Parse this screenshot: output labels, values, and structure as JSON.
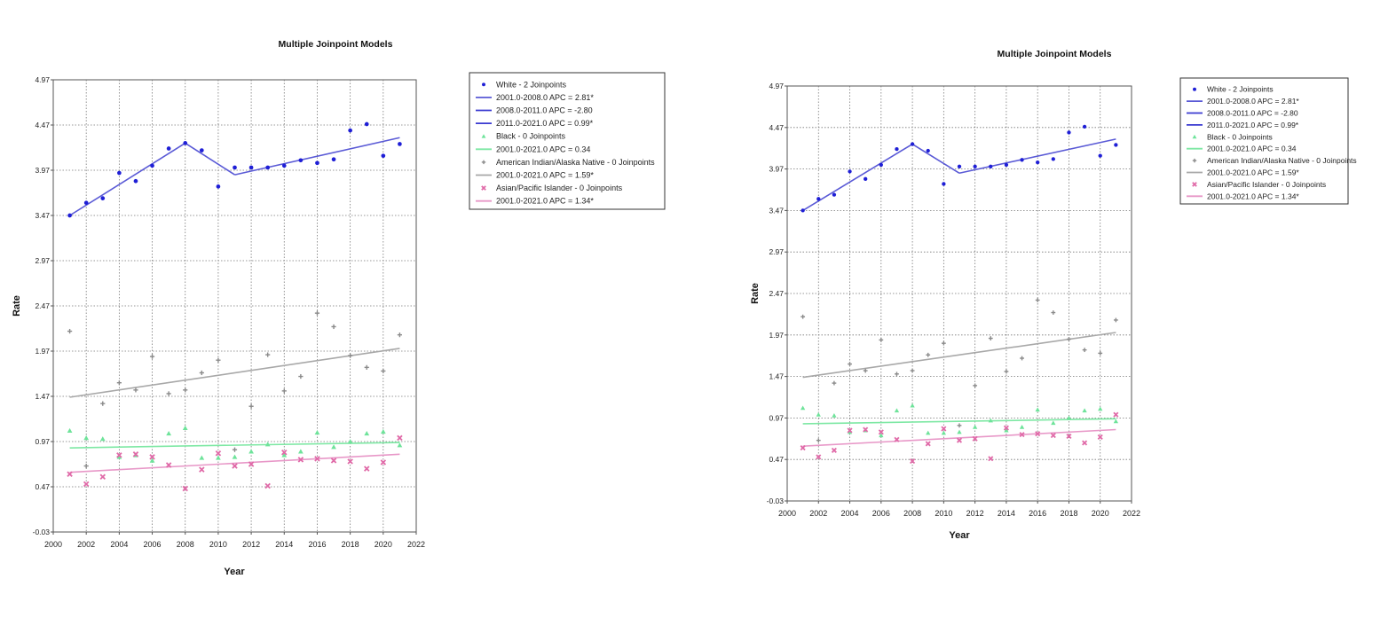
{
  "chart_data": [
    {
      "type": "scatter",
      "title": "Multiple Joinpoint Models",
      "xlabel": "Year",
      "ylabel": "Rate",
      "xlim": [
        2000,
        2022
      ],
      "ylim": [
        -0.03,
        4.97
      ],
      "x_ticks": [
        "2000",
        "2002",
        "2004",
        "2006",
        "2008",
        "2010",
        "2012",
        "2014",
        "2016",
        "2018",
        "2020",
        "2022"
      ],
      "y_ticks": [
        "-0.03",
        "0.47",
        "0.97",
        "1.47",
        "1.97",
        "2.47",
        "2.97",
        "3.47",
        "3.97",
        "4.47",
        "4.97"
      ],
      "grid": true,
      "legend_position": "right",
      "legend": [
        {
          "label": "White - 2 Joinpoints",
          "kind": "marker",
          "marker": "dot",
          "color": "#1f1fd6"
        },
        {
          "label": "2001.0-2008.0 APC  =  2.81*",
          "kind": "line",
          "color": "#5a5ad6"
        },
        {
          "label": "2008.0-2011.0 APC  = -2.80",
          "kind": "line",
          "color": "#3a3ad0"
        },
        {
          "label": "2011.0-2021.0 APC  =  0.99*",
          "kind": "line",
          "color": "#3a3ad0"
        },
        {
          "label": "Black - 0 Joinpoints",
          "kind": "marker",
          "marker": "triangle",
          "color": "#6ee39a"
        },
        {
          "label": "2001.0-2021.0 APC  =  0.34",
          "kind": "line",
          "color": "#7ee8a4"
        },
        {
          "label": "American Indian/Alaska Native - 0 Joinpoints",
          "kind": "marker",
          "marker": "plus",
          "color": "#8a8a8a"
        },
        {
          "label": "2001.0-2021.0 APC  =  1.59*",
          "kind": "line",
          "color": "#a8a8a8"
        },
        {
          "label": "Asian/Pacific Islander - 0 Joinpoints",
          "kind": "marker",
          "marker": "x",
          "color": "#e06aa8"
        },
        {
          "label": "2001.0-2021.0 APC  =  1.34*",
          "kind": "line",
          "color": "#e898c8"
        }
      ],
      "series": [
        {
          "name": "White - 2 Joinpoints",
          "marker": "dot",
          "color": "#1f1fd6",
          "x": [
            2001,
            2002,
            2003,
            2004,
            2005,
            2006,
            2007,
            2008,
            2009,
            2010,
            2011,
            2012,
            2013,
            2014,
            2015,
            2016,
            2017,
            2018,
            2019,
            2020,
            2021
          ],
          "y": [
            3.47,
            3.61,
            3.66,
            3.94,
            3.85,
            4.02,
            4.21,
            4.27,
            4.19,
            3.79,
            4.0,
            4.0,
            4.0,
            4.02,
            4.08,
            4.05,
            4.09,
            4.41,
            4.48,
            4.13,
            4.26
          ]
        },
        {
          "name": "Black - 0 Joinpoints",
          "marker": "triangle",
          "color": "#6ee39a",
          "x": [
            2001,
            2002,
            2003,
            2004,
            2005,
            2006,
            2007,
            2008,
            2009,
            2010,
            2011,
            2012,
            2013,
            2014,
            2015,
            2016,
            2017,
            2018,
            2019,
            2020,
            2021
          ],
          "y": [
            1.09,
            1.01,
            1.0,
            0.8,
            0.82,
            0.76,
            1.06,
            1.12,
            0.79,
            0.79,
            0.8,
            0.86,
            0.94,
            0.82,
            0.86,
            1.07,
            0.91,
            0.97,
            1.06,
            1.08,
            0.93
          ]
        },
        {
          "name": "American Indian/Alaska Native - 0 Joinpoints",
          "marker": "plus",
          "color": "#8a8a8a",
          "x": [
            2001,
            2002,
            2003,
            2004,
            2005,
            2006,
            2007,
            2008,
            2009,
            2010,
            2011,
            2012,
            2013,
            2014,
            2015,
            2016,
            2017,
            2018,
            2019,
            2020,
            2021
          ],
          "y": [
            2.19,
            0.7,
            1.39,
            1.62,
            1.54,
            1.91,
            1.5,
            1.54,
            1.73,
            1.87,
            0.88,
            1.36,
            1.93,
            1.53,
            1.69,
            2.39,
            2.24,
            1.92,
            1.79,
            1.75,
            2.15
          ]
        },
        {
          "name": "Asian/Pacific Islander - 0 Joinpoints",
          "marker": "x",
          "color": "#e06aa8",
          "x": [
            2001,
            2002,
            2003,
            2004,
            2005,
            2006,
            2007,
            2008,
            2009,
            2010,
            2011,
            2012,
            2013,
            2014,
            2015,
            2016,
            2017,
            2018,
            2019,
            2020,
            2021
          ],
          "y": [
            0.61,
            0.5,
            0.58,
            0.82,
            0.83,
            0.8,
            0.71,
            0.45,
            0.66,
            0.84,
            0.7,
            0.72,
            0.48,
            0.85,
            0.77,
            0.78,
            0.76,
            0.75,
            0.67,
            0.74,
            1.01
          ]
        }
      ],
      "trend_lines": [
        {
          "name": "2001.0-2008.0 APC  =  2.81*",
          "color": "#5a5ad6",
          "points": [
            [
              2001,
              3.47
            ],
            [
              2008,
              4.27
            ]
          ]
        },
        {
          "name": "2008.0-2011.0 APC  = -2.80",
          "color": "#5a5ad6",
          "points": [
            [
              2008,
              4.27
            ],
            [
              2011,
              3.92
            ]
          ]
        },
        {
          "name": "2011.0-2021.0 APC  =  0.99*",
          "color": "#5a5ad6",
          "points": [
            [
              2011,
              3.92
            ],
            [
              2021,
              4.33
            ]
          ]
        },
        {
          "name": "2001.0-2021.0 APC  =  0.34",
          "color": "#7ee8a4",
          "points": [
            [
              2001,
              0.9
            ],
            [
              2021,
              0.96
            ]
          ]
        },
        {
          "name": "2001.0-2021.0 APC  =  1.59*",
          "color": "#a8a8a8",
          "points": [
            [
              2001,
              1.46
            ],
            [
              2021,
              2.0
            ]
          ]
        },
        {
          "name": "2001.0-2021.0 APC  =  1.34*",
          "color": "#e898c8",
          "points": [
            [
              2001,
              0.63
            ],
            [
              2021,
              0.83
            ]
          ]
        }
      ]
    },
    {
      "type": "scatter",
      "title": "Multiple Joinpoint Models",
      "xlabel": "Year",
      "ylabel": "Rate",
      "xlim": [
        2000,
        2022
      ],
      "ylim": [
        -0.03,
        4.97
      ],
      "x_ticks": [
        "2000",
        "2002",
        "2004",
        "2006",
        "2008",
        "2010",
        "2012",
        "2014",
        "2016",
        "2018",
        "2020",
        "2022"
      ],
      "y_ticks": [
        "-0.03",
        "0.47",
        "0.97",
        "1.47",
        "1.97",
        "2.47",
        "2.97",
        "3.47",
        "3.97",
        "4.47",
        "4.97"
      ],
      "grid": true,
      "legend_position": "right",
      "legend": [
        {
          "label": "White - 2 Joinpoints",
          "kind": "marker",
          "marker": "dot",
          "color": "#1f1fd6"
        },
        {
          "label": "2001.0-2008.0 APC  =  2.81*",
          "kind": "line",
          "color": "#5a5ad6"
        },
        {
          "label": "2008.0-2011.0 APC  = -2.80",
          "kind": "line",
          "color": "#3a3ad0"
        },
        {
          "label": "2011.0-2021.0 APC  =  0.99*",
          "kind": "line",
          "color": "#3a3ad0"
        },
        {
          "label": "Black - 0 Joinpoints",
          "kind": "marker",
          "marker": "triangle",
          "color": "#6ee39a"
        },
        {
          "label": "2001.0-2021.0 APC  =  0.34",
          "kind": "line",
          "color": "#7ee8a4"
        },
        {
          "label": "American Indian/Alaska Native - 0 Joinpoints",
          "kind": "marker",
          "marker": "plus",
          "color": "#8a8a8a"
        },
        {
          "label": "2001.0-2021.0 APC  =  1.59*",
          "kind": "line",
          "color": "#a8a8a8"
        },
        {
          "label": "Asian/Pacific Islander - 0 Joinpoints",
          "kind": "marker",
          "marker": "x",
          "color": "#e06aa8"
        },
        {
          "label": "2001.0-2021.0 APC  =  1.34*",
          "kind": "line",
          "color": "#e898c8"
        }
      ],
      "series": [
        {
          "name": "White - 2 Joinpoints",
          "marker": "dot",
          "color": "#1f1fd6",
          "x": [
            2001,
            2002,
            2003,
            2004,
            2005,
            2006,
            2007,
            2008,
            2009,
            2010,
            2011,
            2012,
            2013,
            2014,
            2015,
            2016,
            2017,
            2018,
            2019,
            2020,
            2021
          ],
          "y": [
            3.47,
            3.61,
            3.66,
            3.94,
            3.85,
            4.02,
            4.21,
            4.27,
            4.19,
            3.79,
            4.0,
            4.0,
            4.0,
            4.02,
            4.08,
            4.05,
            4.09,
            4.41,
            4.48,
            4.13,
            4.26
          ]
        },
        {
          "name": "Black - 0 Joinpoints",
          "marker": "triangle",
          "color": "#6ee39a",
          "x": [
            2001,
            2002,
            2003,
            2004,
            2005,
            2006,
            2007,
            2008,
            2009,
            2010,
            2011,
            2012,
            2013,
            2014,
            2015,
            2016,
            2017,
            2018,
            2019,
            2020,
            2021
          ],
          "y": [
            1.09,
            1.01,
            1.0,
            0.8,
            0.82,
            0.76,
            1.06,
            1.12,
            0.79,
            0.79,
            0.8,
            0.86,
            0.94,
            0.82,
            0.86,
            1.07,
            0.91,
            0.97,
            1.06,
            1.08,
            0.93
          ]
        },
        {
          "name": "American Indian/Alaska Native - 0 Joinpoints",
          "marker": "plus",
          "color": "#8a8a8a",
          "x": [
            2001,
            2002,
            2003,
            2004,
            2005,
            2006,
            2007,
            2008,
            2009,
            2010,
            2011,
            2012,
            2013,
            2014,
            2015,
            2016,
            2017,
            2018,
            2019,
            2020,
            2021
          ],
          "y": [
            2.19,
            0.7,
            1.39,
            1.62,
            1.54,
            1.91,
            1.5,
            1.54,
            1.73,
            1.87,
            0.88,
            1.36,
            1.93,
            1.53,
            1.69,
            2.39,
            2.24,
            1.92,
            1.79,
            1.75,
            2.15
          ]
        },
        {
          "name": "Asian/Pacific Islander - 0 Joinpoints",
          "marker": "x",
          "color": "#e06aa8",
          "x": [
            2001,
            2002,
            2003,
            2004,
            2005,
            2006,
            2007,
            2008,
            2009,
            2010,
            2011,
            2012,
            2013,
            2014,
            2015,
            2016,
            2017,
            2018,
            2019,
            2020,
            2021
          ],
          "y": [
            0.61,
            0.5,
            0.58,
            0.82,
            0.83,
            0.8,
            0.71,
            0.45,
            0.66,
            0.84,
            0.7,
            0.72,
            0.48,
            0.85,
            0.77,
            0.78,
            0.76,
            0.75,
            0.67,
            0.74,
            1.01
          ]
        }
      ],
      "trend_lines": [
        {
          "name": "2001.0-2008.0 APC  =  2.81*",
          "color": "#5a5ad6",
          "points": [
            [
              2001,
              3.47
            ],
            [
              2008,
              4.27
            ]
          ]
        },
        {
          "name": "2008.0-2011.0 APC  = -2.80",
          "color": "#5a5ad6",
          "points": [
            [
              2008,
              4.27
            ],
            [
              2011,
              3.92
            ]
          ]
        },
        {
          "name": "2011.0-2021.0 APC  =  0.99*",
          "color": "#5a5ad6",
          "points": [
            [
              2011,
              3.92
            ],
            [
              2021,
              4.33
            ]
          ]
        },
        {
          "name": "2001.0-2021.0 APC  =  0.34",
          "color": "#7ee8a4",
          "points": [
            [
              2001,
              0.9
            ],
            [
              2021,
              0.96
            ]
          ]
        },
        {
          "name": "2001.0-2021.0 APC  =  1.59*",
          "color": "#a8a8a8",
          "points": [
            [
              2001,
              1.46
            ],
            [
              2021,
              2.0
            ]
          ]
        },
        {
          "name": "2001.0-2021.0 APC  =  1.34*",
          "color": "#e898c8",
          "points": [
            [
              2001,
              0.63
            ],
            [
              2021,
              0.83
            ]
          ]
        }
      ]
    }
  ]
}
